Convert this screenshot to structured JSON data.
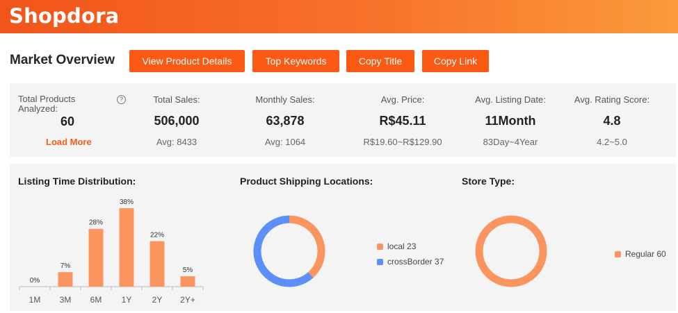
{
  "header": {
    "logo": "Shopdora"
  },
  "page_title": "Market Overview",
  "toolbar": {
    "view_details": "View Product Details",
    "top_keywords": "Top Keywords",
    "copy_title": "Copy Title",
    "copy_link": "Copy Link"
  },
  "stats": {
    "total_products": {
      "label": "Total Products Analyzed:",
      "value": "60",
      "link": "Load More",
      "help": "?"
    },
    "total_sales": {
      "label": "Total Sales:",
      "value": "506,000",
      "sub": "Avg: 8433"
    },
    "monthly_sales": {
      "label": "Monthly Sales:",
      "value": "63,878",
      "sub": "Avg: 1064"
    },
    "avg_price": {
      "label": "Avg. Price:",
      "value": "R$45.11",
      "sub": "R$19.60~R$129.90"
    },
    "avg_listing_date": {
      "label": "Avg. Listing Date:",
      "value": "11Month",
      "sub": "83Day~4Year"
    },
    "avg_rating": {
      "label": "Avg. Rating Score:",
      "value": "4.8",
      "sub": "4.2~5.0"
    }
  },
  "panels": {
    "listing_title": "Listing Time Distribution:",
    "shipping_title": "Product Shipping Locations:",
    "store_title": "Store Type:"
  },
  "colors": {
    "accent": "#fa5a14",
    "bar": "#fb9560",
    "local": "#fb9560",
    "crossBorder": "#5b8ff9",
    "regular": "#fb9560"
  },
  "chart_data": [
    {
      "type": "bar",
      "title": "Listing Time Distribution:",
      "categories": [
        "1M",
        "3M",
        "6M",
        "1Y",
        "2Y",
        "2Y+"
      ],
      "values": [
        0,
        7,
        28,
        38,
        22,
        5
      ],
      "labels": [
        "0%",
        "7%",
        "28%",
        "38%",
        "22%",
        "5%"
      ],
      "ylim": [
        0,
        40
      ]
    },
    {
      "type": "pie",
      "title": "Product Shipping Locations:",
      "series": [
        {
          "name": "local",
          "value": 23,
          "legend": "local 23"
        },
        {
          "name": "crossBorder",
          "value": 37,
          "legend": "crossBorder 37"
        }
      ]
    },
    {
      "type": "pie",
      "title": "Store Type:",
      "series": [
        {
          "name": "Regular",
          "value": 60,
          "legend": "Regular 60"
        }
      ]
    }
  ]
}
